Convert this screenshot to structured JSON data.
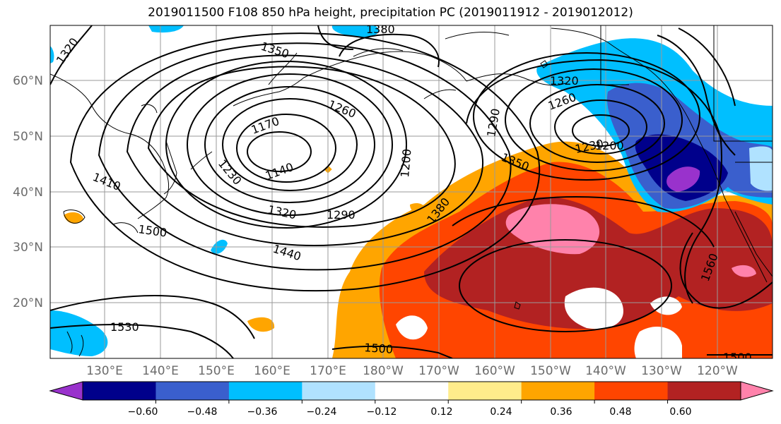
{
  "title": "2019011500 F108 850 hPa height, precipitation PC (2019011912 - 2019012012)",
  "lat_labels": [
    "60°N",
    "50°N",
    "40°N",
    "30°N",
    "20°N"
  ],
  "lon_labels": [
    "130°E",
    "140°E",
    "150°E",
    "160°E",
    "170°E",
    "180°W",
    "170°W",
    "160°W",
    "150°W",
    "140°W",
    "130°W",
    "120°W"
  ],
  "contour_labels": [
    "1320",
    "1350",
    "1380",
    "1170",
    "1260",
    "1140",
    "1200",
    "1230",
    "1410",
    "1320",
    "1290",
    "1500",
    "1440",
    "1380",
    "1290",
    "1260",
    "1320",
    "1350",
    "1230",
    "1200",
    "1560",
    "1530",
    "1500",
    "1500"
  ],
  "colorbar": {
    "colors": [
      "#9932cc",
      "#00008b",
      "#3a5fcd",
      "#00bfff",
      "#b0e2ff",
      "#ffffff",
      "#ffec8b",
      "#ffa500",
      "#ff4500",
      "#b22222",
      "#ff82ab"
    ],
    "tick_labels": [
      "−0.60",
      "−0.48",
      "−0.36",
      "−0.24",
      "−0.12",
      "0.12",
      "0.24",
      "0.36",
      "0.48",
      "0.60"
    ]
  }
}
